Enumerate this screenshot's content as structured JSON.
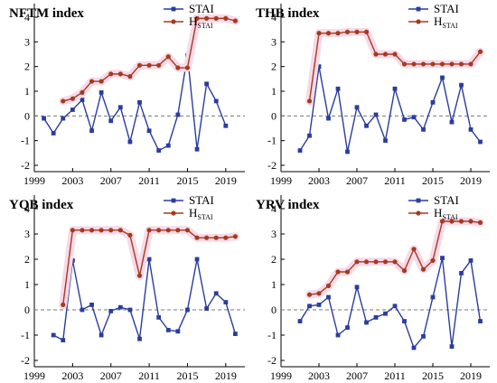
{
  "colors": {
    "stai": "#2b3d9c",
    "hstai": "#a53a1f",
    "highlight": "#f7d9e8",
    "zero_line": "#777777",
    "axis": "#000000"
  },
  "chart_data": [
    {
      "type": "line",
      "title": "NFTM index",
      "xlim": [
        1999,
        2021
      ],
      "ylim": [
        -2,
        4
      ],
      "xticks": [
        1999,
        2003,
        2007,
        2011,
        2015,
        2019
      ],
      "yticks": [
        -2,
        -1,
        0,
        1,
        2,
        3,
        4
      ],
      "legend": {
        "placement": "top-right"
      },
      "series": [
        {
          "name": "STAI",
          "label_main": "STAI",
          "label_sub": "",
          "x": [
            2000,
            2001,
            2002,
            2003,
            2004,
            2005,
            2006,
            2007,
            2008,
            2009,
            2010,
            2011,
            2012,
            2013,
            2014,
            2015,
            2016,
            2017,
            2018,
            2019,
            2020
          ],
          "y": [
            -0.1,
            -0.7,
            -0.1,
            0.25,
            0.65,
            -0.6,
            0.95,
            -0.2,
            0.35,
            -1.05,
            0.55,
            -0.6,
            -1.4,
            -1.2,
            0.05,
            2.45,
            -1.35,
            1.3,
            0.6,
            -0.4,
            null
          ]
        },
        {
          "name": "HSTAI",
          "label_main": "H",
          "label_sub": "STAI",
          "x": [
            2002,
            2003,
            2004,
            2005,
            2006,
            2007,
            2008,
            2009,
            2010,
            2011,
            2012,
            2013,
            2014,
            2015,
            2016,
            2017,
            2018,
            2019,
            2020
          ],
          "y": [
            0.6,
            0.7,
            0.95,
            1.4,
            1.4,
            1.7,
            1.7,
            1.6,
            2.05,
            2.05,
            2.05,
            2.4,
            1.95,
            1.95,
            3.95,
            3.95,
            3.95,
            3.95,
            3.85
          ]
        }
      ]
    },
    {
      "type": "line",
      "title": "THB index",
      "xlim": [
        1999,
        2021
      ],
      "ylim": [
        -2,
        4
      ],
      "xticks": [
        1999,
        2003,
        2007,
        2011,
        2015,
        2019
      ],
      "yticks": [
        -2,
        -1,
        0,
        1,
        2,
        3,
        4
      ],
      "legend": {
        "placement": "top-right"
      },
      "series": [
        {
          "name": "STAI",
          "label_main": "STAI",
          "label_sub": "",
          "x": [
            2001,
            2002,
            2003,
            2004,
            2005,
            2006,
            2007,
            2008,
            2009,
            2010,
            2011,
            2012,
            2013,
            2014,
            2015,
            2016,
            2017,
            2018,
            2019,
            2020
          ],
          "y": [
            -1.4,
            -0.8,
            2.0,
            -0.1,
            1.1,
            -1.45,
            0.35,
            -0.4,
            0.05,
            -1.0,
            1.1,
            -0.15,
            -0.05,
            -0.55,
            0.55,
            1.55,
            -0.25,
            1.25,
            -0.55,
            -1.05
          ]
        },
        {
          "name": "HSTAI",
          "label_main": "H",
          "label_sub": "STAI",
          "x": [
            2002,
            2003,
            2004,
            2005,
            2006,
            2007,
            2008,
            2009,
            2010,
            2011,
            2012,
            2013,
            2014,
            2015,
            2016,
            2017,
            2018,
            2019,
            2020
          ],
          "y": [
            0.6,
            3.35,
            3.35,
            3.35,
            3.4,
            3.4,
            3.4,
            2.5,
            2.5,
            2.5,
            2.1,
            2.1,
            2.1,
            2.1,
            2.1,
            2.1,
            2.1,
            2.1,
            2.6
          ]
        }
      ]
    },
    {
      "type": "line",
      "title": "YQB index",
      "xlim": [
        1999,
        2021
      ],
      "ylim": [
        -2,
        4
      ],
      "xticks": [
        1999,
        2003,
        2007,
        2011,
        2015,
        2019
      ],
      "yticks": [
        -2,
        -1,
        0,
        1,
        2,
        3,
        4
      ],
      "legend": {
        "placement": "top-right"
      },
      "series": [
        {
          "name": "STAI",
          "label_main": "STAI",
          "label_sub": "",
          "x": [
            2001,
            2002,
            2003,
            2004,
            2005,
            2006,
            2007,
            2008,
            2009,
            2010,
            2011,
            2012,
            2013,
            2014,
            2015,
            2016,
            2017,
            2018,
            2019,
            2020
          ],
          "y": [
            -1.0,
            -1.2,
            1.95,
            0.0,
            0.2,
            -1.0,
            -0.05,
            0.1,
            0.0,
            -1.15,
            2.0,
            -0.3,
            -0.8,
            -0.85,
            0.0,
            2.0,
            0.05,
            0.65,
            0.3,
            -0.95
          ]
        },
        {
          "name": "HSTAI",
          "label_main": "H",
          "label_sub": "STAI",
          "x": [
            2002,
            2003,
            2004,
            2005,
            2006,
            2007,
            2008,
            2009,
            2010,
            2011,
            2012,
            2013,
            2014,
            2015,
            2016,
            2017,
            2018,
            2019,
            2020
          ],
          "y": [
            0.2,
            3.15,
            3.15,
            3.15,
            3.15,
            3.15,
            3.15,
            2.95,
            1.35,
            3.15,
            3.15,
            3.15,
            3.15,
            3.15,
            2.85,
            2.85,
            2.85,
            2.85,
            2.9
          ]
        }
      ]
    },
    {
      "type": "line",
      "title": "YRV index",
      "xlim": [
        1999,
        2021
      ],
      "ylim": [
        -2,
        4
      ],
      "xticks": [
        1999,
        2003,
        2007,
        2011,
        2015,
        2019
      ],
      "yticks": [
        -2,
        -1,
        0,
        1,
        2,
        3,
        4
      ],
      "legend": {
        "placement": "top-right"
      },
      "series": [
        {
          "name": "STAI",
          "label_main": "STAI",
          "label_sub": "",
          "x": [
            2001,
            2002,
            2003,
            2004,
            2005,
            2006,
            2007,
            2008,
            2009,
            2010,
            2011,
            2012,
            2013,
            2014,
            2015,
            2016,
            2017,
            2018,
            2019,
            2020
          ],
          "y": [
            -0.45,
            0.15,
            0.2,
            0.5,
            -1.0,
            -0.7,
            0.9,
            -0.5,
            -0.3,
            -0.15,
            0.15,
            -0.45,
            -1.5,
            -1.05,
            0.5,
            2.05,
            -1.45,
            1.45,
            1.95,
            -0.45
          ]
        },
        {
          "name": "HSTAI",
          "label_main": "H",
          "label_sub": "STAI",
          "x": [
            2002,
            2003,
            2004,
            2005,
            2006,
            2007,
            2008,
            2009,
            2010,
            2011,
            2012,
            2013,
            2014,
            2015,
            2016,
            2017,
            2018,
            2019,
            2020
          ],
          "y": [
            0.6,
            0.65,
            0.95,
            1.5,
            1.5,
            1.9,
            1.9,
            1.9,
            1.9,
            1.9,
            1.55,
            2.4,
            1.6,
            1.95,
            3.5,
            3.5,
            3.5,
            3.5,
            3.45
          ]
        }
      ]
    }
  ]
}
